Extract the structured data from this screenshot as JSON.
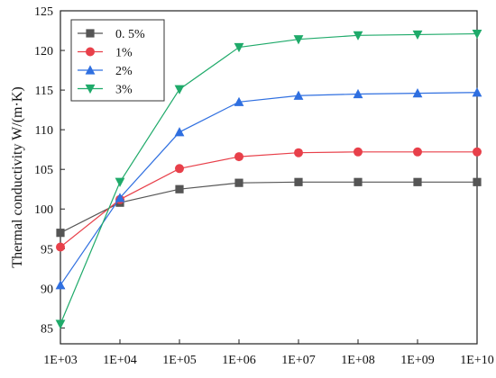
{
  "chart_data": {
    "type": "line",
    "title": "",
    "xlabel": "",
    "ylabel": "Thermal conductivity  W/(m·K)",
    "x_scale": "log",
    "x": [
      1000,
      10000,
      100000,
      1000000,
      10000000,
      100000000,
      1000000000,
      10000000000
    ],
    "categories": [
      "1E+03",
      "1E+04",
      "1E+05",
      "1E+06",
      "1E+07",
      "1E+08",
      "1E+09",
      "1E+10"
    ],
    "xlim": [
      1000,
      10000000000
    ],
    "ylim": [
      83,
      125
    ],
    "yticks": [
      85,
      90,
      95,
      100,
      105,
      110,
      115,
      120,
      125
    ],
    "grid": false,
    "legend_position": "top-left",
    "series": [
      {
        "name": "0. 5%",
        "color": "#555555",
        "marker": "square",
        "values": [
          97.0,
          100.8,
          102.5,
          103.3,
          103.4,
          103.4,
          103.4,
          103.4
        ]
      },
      {
        "name": "1%",
        "color": "#e8404a",
        "marker": "circle",
        "values": [
          95.2,
          101.2,
          105.1,
          106.6,
          107.1,
          107.2,
          107.2,
          107.2
        ]
      },
      {
        "name": "2%",
        "color": "#2f6fe0",
        "marker": "triangle-up",
        "values": [
          90.4,
          101.4,
          109.7,
          113.5,
          114.3,
          114.5,
          114.6,
          114.7
        ]
      },
      {
        "name": "3%",
        "color": "#1faa6a",
        "marker": "triangle-down",
        "values": [
          85.5,
          103.4,
          115.1,
          120.4,
          121.4,
          121.9,
          122.0,
          122.1
        ]
      }
    ]
  }
}
